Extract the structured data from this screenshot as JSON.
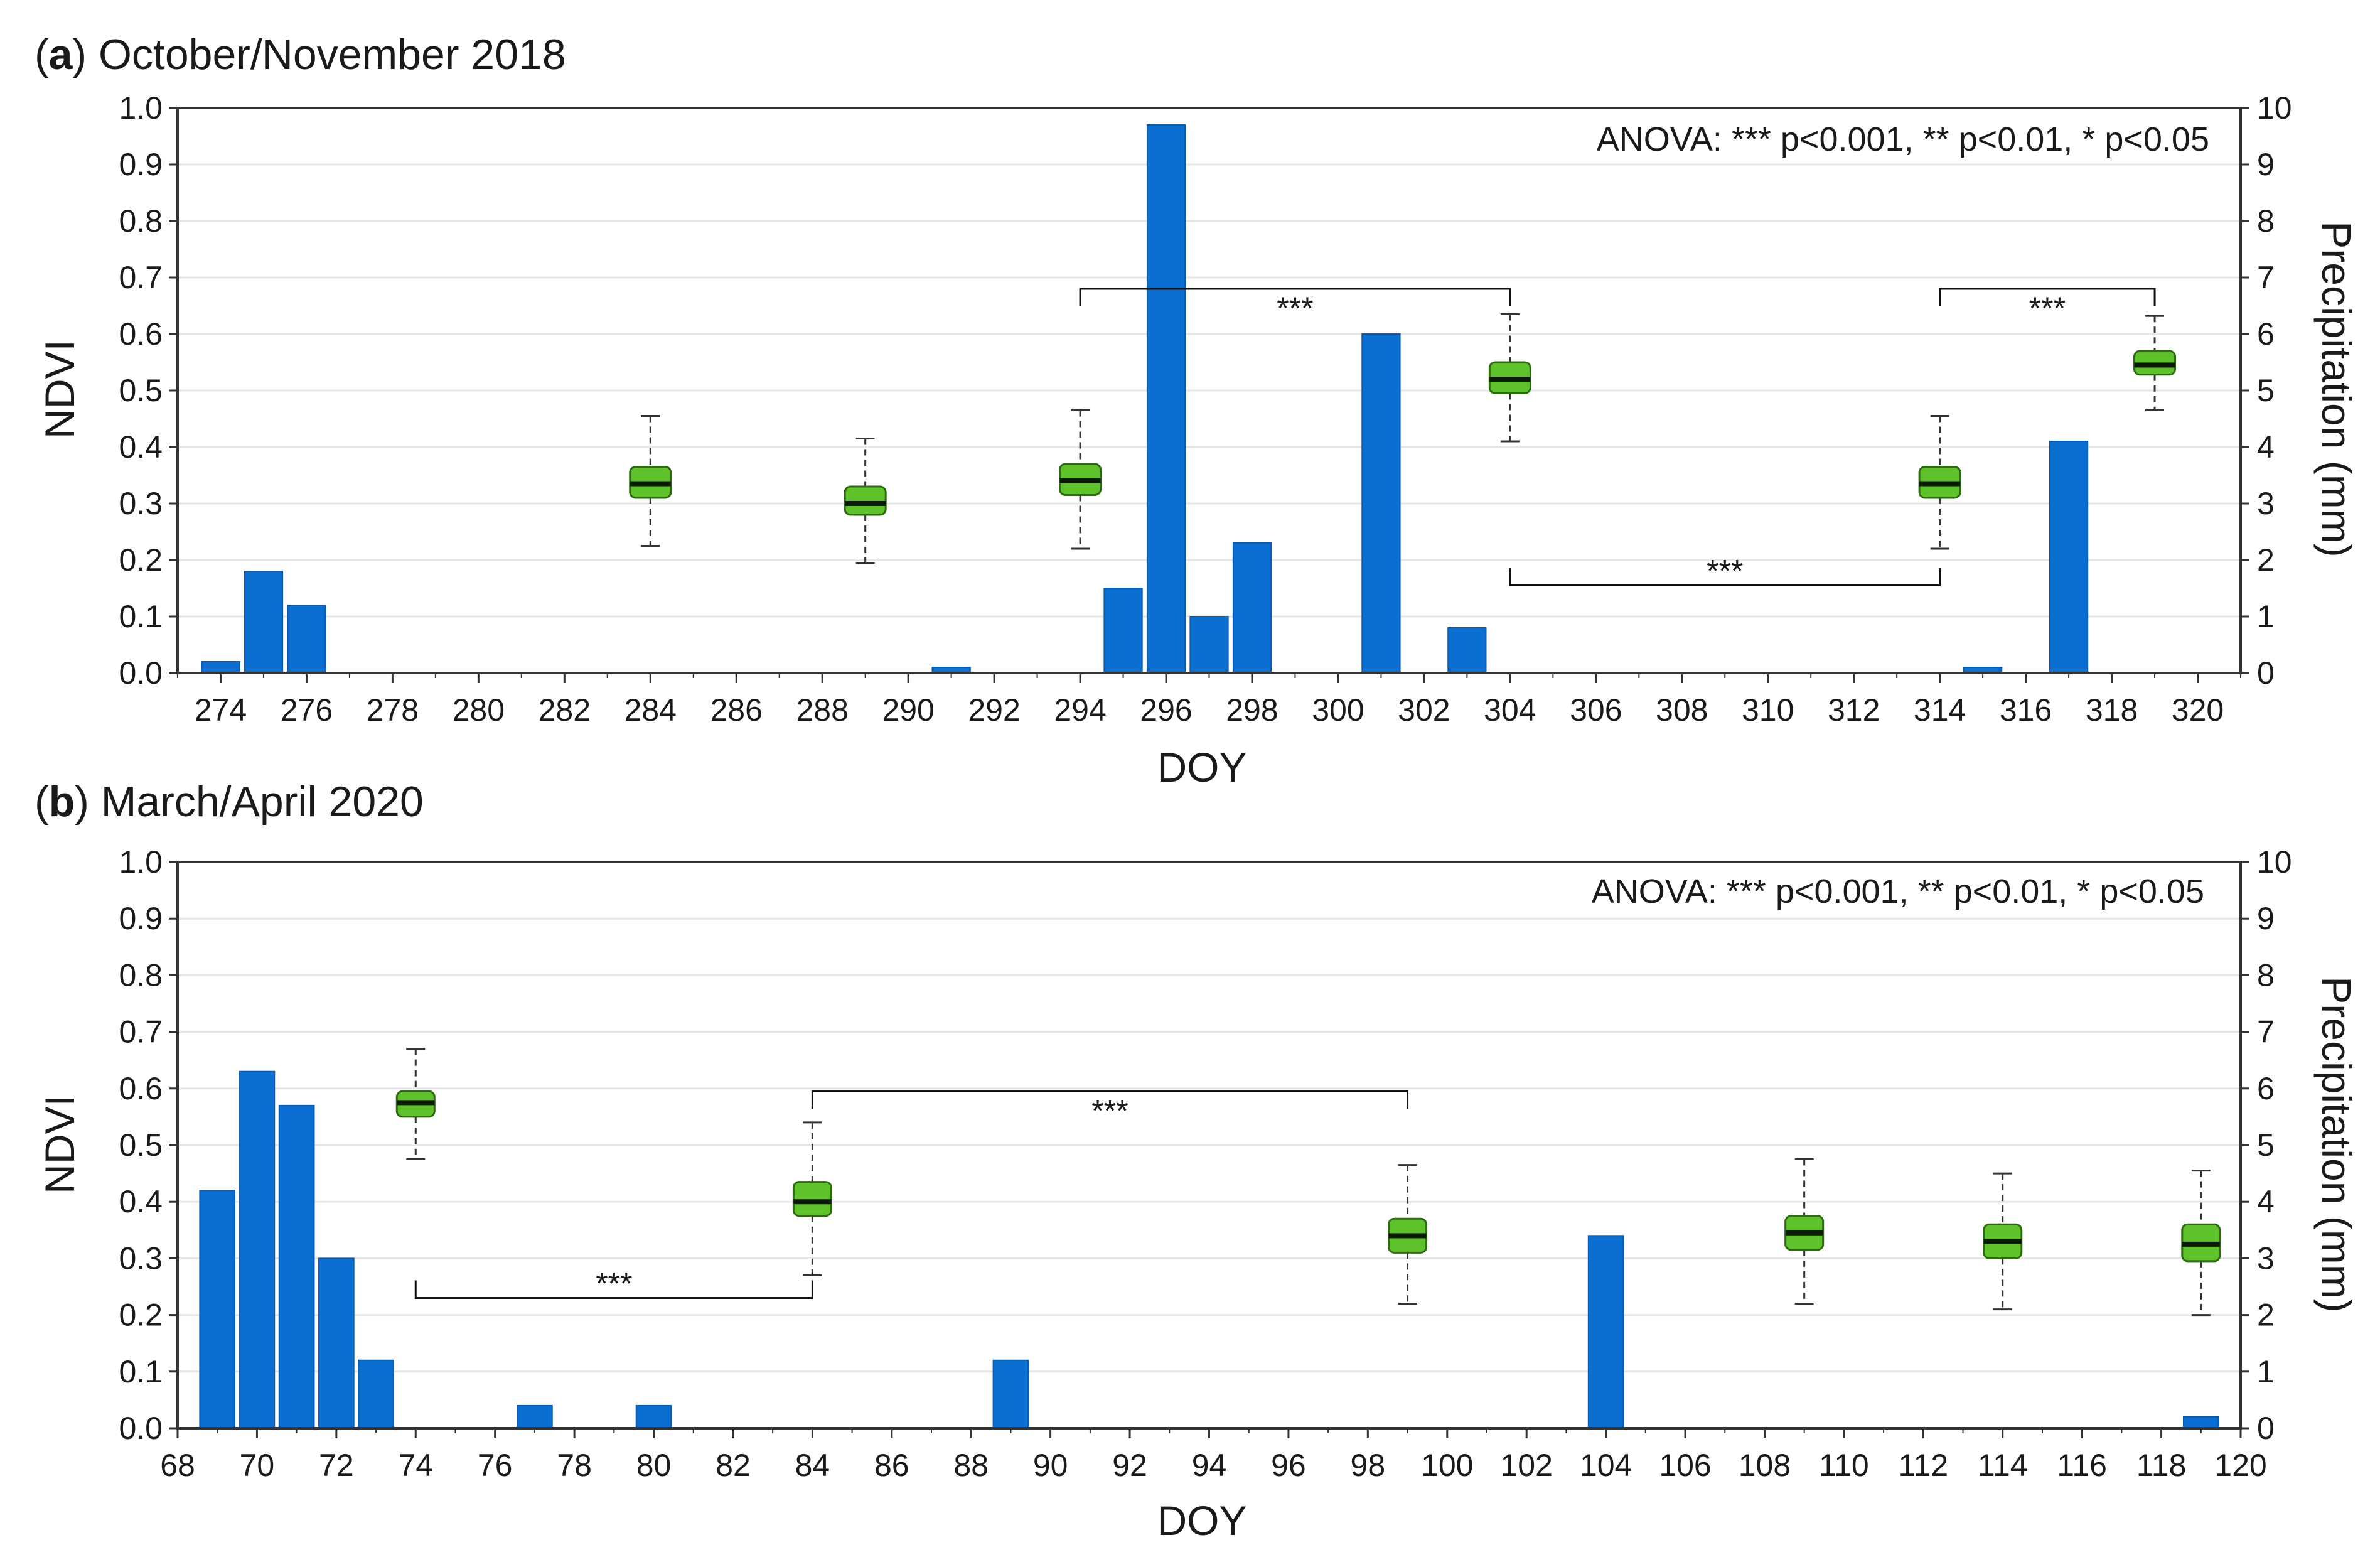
{
  "chart_data": [
    {
      "type": "bar+box",
      "panel_letter": "a",
      "panel_title": "October/November 2018",
      "xlabel": "DOY",
      "ylabel_left": "NDVI",
      "ylabel_right": "Precipitation (mm)",
      "annotation": "ANOVA:  *** p<0.001,  ** p<0.01,  * p<0.05",
      "xlim": [
        273,
        321
      ],
      "xticks": [
        274,
        276,
        278,
        280,
        282,
        284,
        286,
        288,
        290,
        292,
        294,
        296,
        298,
        300,
        302,
        304,
        306,
        308,
        310,
        312,
        314,
        316,
        318,
        320
      ],
      "ylim_left": [
        0,
        1
      ],
      "yticks_left": [
        "0.0",
        "0.1",
        "0.2",
        "0.3",
        "0.4",
        "0.5",
        "0.6",
        "0.7",
        "0.8",
        "0.9",
        "1.0"
      ],
      "ylim_right": [
        0,
        10
      ],
      "yticks_right": [
        "0",
        "1",
        "2",
        "3",
        "4",
        "5",
        "6",
        "7",
        "8",
        "9",
        "10"
      ],
      "precipitation": [
        {
          "doy": 274,
          "mm": 0.2
        },
        {
          "doy": 275,
          "mm": 1.8
        },
        {
          "doy": 276,
          "mm": 1.2
        },
        {
          "doy": 291,
          "mm": 0.1
        },
        {
          "doy": 295,
          "mm": 1.5
        },
        {
          "doy": 296,
          "mm": 9.7
        },
        {
          "doy": 297,
          "mm": 1.0
        },
        {
          "doy": 298,
          "mm": 2.3
        },
        {
          "doy": 301,
          "mm": 6.0
        },
        {
          "doy": 303,
          "mm": 0.8
        },
        {
          "doy": 315,
          "mm": 0.1
        },
        {
          "doy": 317,
          "mm": 4.1
        }
      ],
      "ndvi_boxes": [
        {
          "doy": 284,
          "min": 0.225,
          "q1": 0.31,
          "median": 0.335,
          "q3": 0.365,
          "max": 0.455
        },
        {
          "doy": 289,
          "min": 0.195,
          "q1": 0.28,
          "median": 0.3,
          "q3": 0.33,
          "max": 0.415
        },
        {
          "doy": 294,
          "min": 0.22,
          "q1": 0.315,
          "median": 0.34,
          "q3": 0.37,
          "max": 0.465
        },
        {
          "doy": 304,
          "min": 0.41,
          "q1": 0.495,
          "median": 0.52,
          "q3": 0.55,
          "max": 0.635
        },
        {
          "doy": 314,
          "min": 0.22,
          "q1": 0.31,
          "median": 0.335,
          "q3": 0.365,
          "max": 0.455
        },
        {
          "doy": 319,
          "min": 0.465,
          "q1": 0.528,
          "median": 0.545,
          "q3": 0.57,
          "max": 0.632
        }
      ],
      "significance": [
        {
          "from": 294,
          "to": 304,
          "y": 0.68,
          "label": "***",
          "side": "top"
        },
        {
          "from": 314,
          "to": 319,
          "y": 0.68,
          "label": "***",
          "side": "top"
        },
        {
          "from": 304,
          "to": 314,
          "y": 0.155,
          "label": "***",
          "side": "bottom"
        }
      ]
    },
    {
      "type": "bar+box",
      "panel_letter": "b",
      "panel_title": "March/April 2020",
      "xlabel": "DOY",
      "ylabel_left": "NDVI",
      "ylabel_right": "Precipitation (mm)",
      "annotation": "ANOVA:  *** p<0.001,  ** p<0.01,  * p<0.05",
      "xlim": [
        68,
        120
      ],
      "xticks": [
        68,
        70,
        72,
        74,
        76,
        78,
        80,
        82,
        84,
        86,
        88,
        90,
        92,
        94,
        96,
        98,
        100,
        102,
        104,
        106,
        108,
        110,
        112,
        114,
        116,
        118,
        120
      ],
      "ylim_left": [
        0,
        1
      ],
      "yticks_left": [
        "0.0",
        "0.1",
        "0.2",
        "0.3",
        "0.4",
        "0.5",
        "0.6",
        "0.7",
        "0.8",
        "0.9",
        "1.0"
      ],
      "ylim_right": [
        0,
        10
      ],
      "yticks_right": [
        "0",
        "1",
        "2",
        "3",
        "4",
        "5",
        "6",
        "7",
        "8",
        "9",
        "10"
      ],
      "precipitation": [
        {
          "doy": 69,
          "mm": 4.2
        },
        {
          "doy": 70,
          "mm": 6.3
        },
        {
          "doy": 71,
          "mm": 5.7
        },
        {
          "doy": 72,
          "mm": 3.0
        },
        {
          "doy": 73,
          "mm": 1.2
        },
        {
          "doy": 77,
          "mm": 0.4
        },
        {
          "doy": 80,
          "mm": 0.4
        },
        {
          "doy": 89,
          "mm": 1.2
        },
        {
          "doy": 104,
          "mm": 3.4
        },
        {
          "doy": 119,
          "mm": 0.2
        }
      ],
      "ndvi_boxes": [
        {
          "doy": 74,
          "min": 0.475,
          "q1": 0.55,
          "median": 0.575,
          "q3": 0.595,
          "max": 0.67
        },
        {
          "doy": 84,
          "min": 0.27,
          "q1": 0.375,
          "median": 0.4,
          "q3": 0.435,
          "max": 0.54
        },
        {
          "doy": 99,
          "min": 0.22,
          "q1": 0.31,
          "median": 0.34,
          "q3": 0.37,
          "max": 0.465
        },
        {
          "doy": 109,
          "min": 0.22,
          "q1": 0.315,
          "median": 0.345,
          "q3": 0.375,
          "max": 0.475
        },
        {
          "doy": 114,
          "min": 0.21,
          "q1": 0.3,
          "median": 0.33,
          "q3": 0.36,
          "max": 0.45
        },
        {
          "doy": 119,
          "min": 0.2,
          "q1": 0.295,
          "median": 0.325,
          "q3": 0.36,
          "max": 0.455
        }
      ],
      "significance": [
        {
          "from": 84,
          "to": 99,
          "y": 0.595,
          "label": "***",
          "side": "top"
        },
        {
          "from": 74,
          "to": 84,
          "y": 0.23,
          "label": "***",
          "side": "bottom"
        }
      ]
    }
  ],
  "colors": {
    "bar": "#0a6fd0",
    "box_fill": "#5ec22a",
    "box_edge": "#2f6a12",
    "grid": "#e6e6e6",
    "axis": "#333333"
  }
}
